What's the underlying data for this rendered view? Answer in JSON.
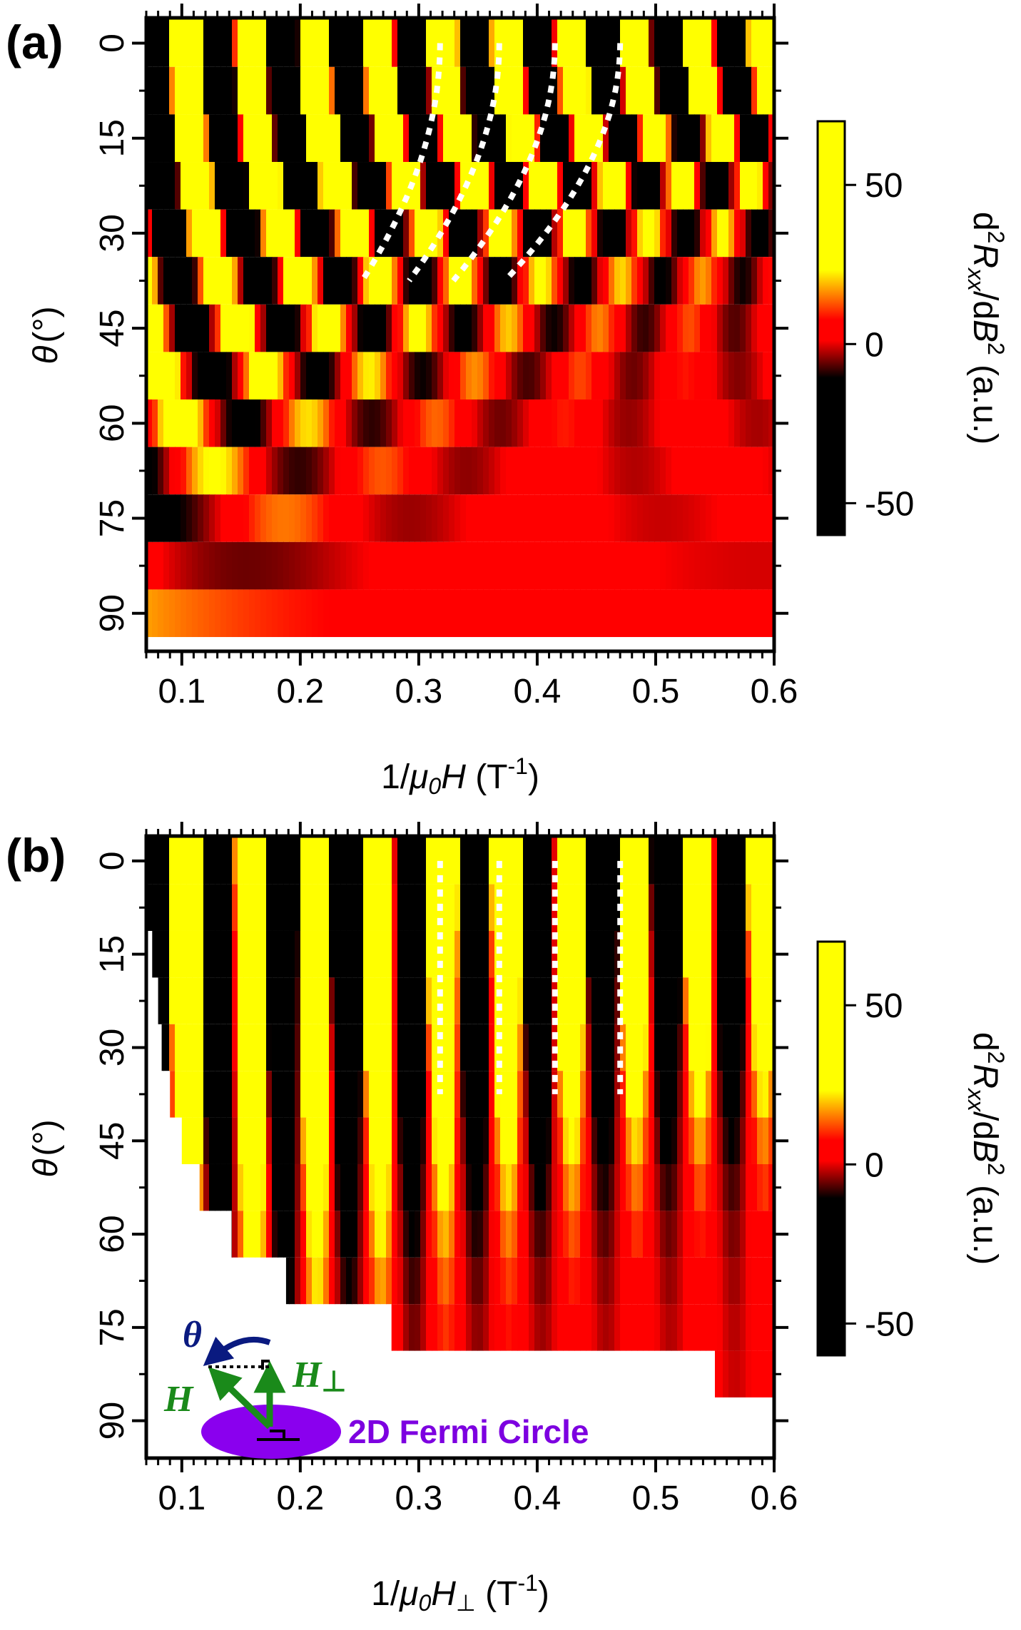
{
  "panel_labels": [
    "(a)",
    "(b)"
  ],
  "colors": {
    "colormap": [
      "#000000",
      "#ff0000",
      "#ffff00"
    ],
    "dash_line": "#ffffff",
    "inset_green": "#1a8a1a",
    "inset_blue": "#0a1a80",
    "inset_purple": "#8a00ee"
  },
  "chart_data": [
    {
      "type": "heatmap",
      "panel": "(a)",
      "xlabel_prefix": "1/",
      "xlabel_mu": "μ",
      "xlabel_sub": "0",
      "xlabel_var": "H",
      "xlabel_unit_open": " (T",
      "xlabel_unit_exp": "-1",
      "xlabel_unit_close": ")",
      "ylabel_var": "θ",
      "ylabel_unit": "(°)",
      "x_range": [
        0.07,
        0.6
      ],
      "y_range": [
        -4,
        96
      ],
      "x_ticks": [
        "0.1",
        "0.2",
        "0.3",
        "0.4",
        "0.5",
        "0.6"
      ],
      "y_ticks": [
        "0",
        "15",
        "30",
        "45",
        "60",
        "75",
        "90"
      ],
      "row_angles": [
        0,
        7.5,
        15,
        22.5,
        30,
        37.5,
        45,
        52.5,
        60,
        67.5,
        75,
        82.5,
        90
      ],
      "row_x_min": [
        0.07,
        0.07,
        0.07,
        0.07,
        0.07,
        0.07,
        0.07,
        0.07,
        0.07,
        0.07,
        0.07,
        0.07,
        0.07
      ],
      "oscillation_frequency_T": 18.5,
      "color_value_range": [
        -60,
        70
      ],
      "guide_lines": [
        {
          "x_at_0deg": 0.318,
          "angle_range": [
            0,
            37.5
          ]
        },
        {
          "x_at_0deg": 0.368,
          "angle_range": [
            0,
            37.5
          ]
        },
        {
          "x_at_0deg": 0.415,
          "angle_range": [
            0,
            37.5
          ]
        },
        {
          "x_at_0deg": 0.47,
          "angle_range": [
            0,
            37.5
          ]
        }
      ],
      "colorbar": {
        "ticks": [
          "50",
          "0",
          "-50"
        ],
        "tick_values": [
          50,
          0,
          -50
        ],
        "range": [
          -60,
          70
        ],
        "title_d": "d",
        "title_exp2": "2",
        "title_R": "R",
        "title_sub": "xx",
        "title_slash": "/d",
        "title_B": "B",
        "title_exp2b": "2",
        "title_unit": " (a.u.)"
      }
    },
    {
      "type": "heatmap",
      "panel": "(b)",
      "xlabel_prefix": "1/",
      "xlabel_mu": "μ",
      "xlabel_sub": "0",
      "xlabel_var": "H",
      "xlabel_sub2": "⊥",
      "xlabel_unit_open": " (T",
      "xlabel_unit_exp": "-1",
      "xlabel_unit_close": ")",
      "ylabel_var": "θ",
      "ylabel_unit": "(°)",
      "x_range": [
        0.07,
        0.6
      ],
      "y_range": [
        -4,
        96
      ],
      "x_ticks": [
        "0.1",
        "0.2",
        "0.3",
        "0.4",
        "0.5",
        "0.6"
      ],
      "y_ticks": [
        "0",
        "15",
        "30",
        "45",
        "60",
        "75",
        "90"
      ],
      "row_angles": [
        0,
        7.5,
        15,
        22.5,
        30,
        37.5,
        45,
        52.5,
        60,
        67.5,
        75,
        82.5
      ],
      "row_x_min": [
        0.07,
        0.07,
        0.075,
        0.08,
        0.083,
        0.09,
        0.1,
        0.115,
        0.142,
        0.188,
        0.277,
        0.55
      ],
      "oscillation_frequency_T": 18.5,
      "color_value_range": [
        -60,
        70
      ],
      "guide_lines": [
        {
          "x": 0.318,
          "angle_range": [
            0,
            37.5
          ]
        },
        {
          "x": 0.368,
          "angle_range": [
            0,
            37.5
          ]
        },
        {
          "x": 0.415,
          "angle_range": [
            0,
            37.5
          ]
        },
        {
          "x": 0.47,
          "angle_range": [
            0,
            37.5
          ]
        }
      ],
      "colorbar": {
        "ticks": [
          "50",
          "0",
          "-50"
        ],
        "tick_values": [
          50,
          0,
          -50
        ],
        "range": [
          -60,
          70
        ],
        "title_d": "d",
        "title_exp2": "2",
        "title_R": "R",
        "title_sub": "xx",
        "title_slash": "/d",
        "title_B": "B",
        "title_exp2b": "2",
        "title_unit": " (a.u.)"
      },
      "inset": {
        "theta_label": "θ",
        "h_label": "H",
        "hperp_label": "H",
        "hperp_sub": "⊥",
        "fermi_label": "2D Fermi Circle"
      }
    }
  ]
}
